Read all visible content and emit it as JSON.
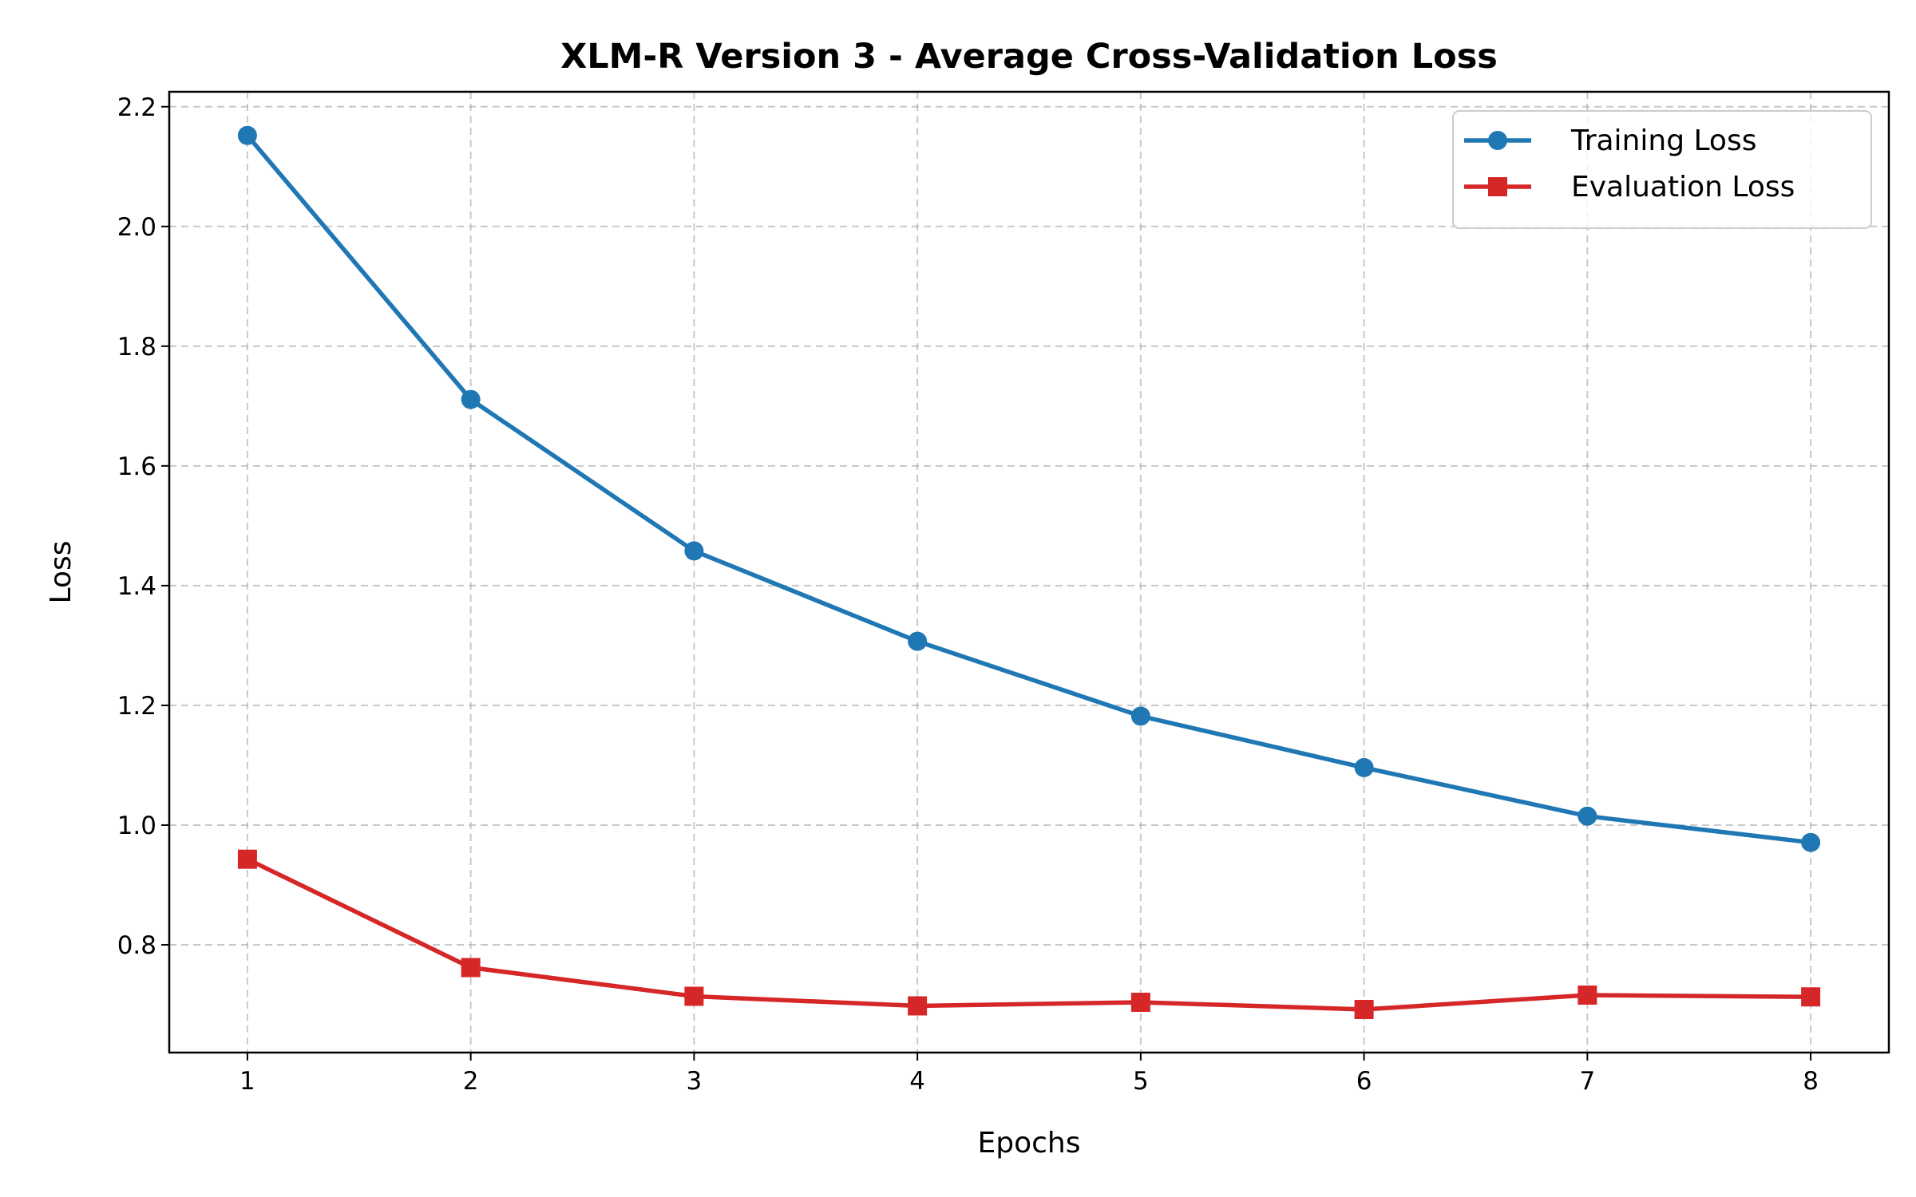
{
  "chart_data": {
    "type": "line",
    "title": "XLM-R Version 3 - Average Cross-Validation Loss",
    "xlabel": "Epochs",
    "ylabel": "Loss",
    "x": [
      1,
      2,
      3,
      4,
      5,
      6,
      7,
      8
    ],
    "xticks": [
      "1",
      "2",
      "3",
      "4",
      "5",
      "6",
      "7",
      "8"
    ],
    "yticks": [
      "0.8",
      "1.0",
      "1.2",
      "1.4",
      "1.6",
      "1.8",
      "2.0",
      "2.2"
    ],
    "xlim": [
      0.65,
      8.35
    ],
    "ylim": [
      0.62,
      2.225
    ],
    "grid": true,
    "legend_position": "top-right",
    "series": [
      {
        "name": "Training Loss",
        "color": "#1f77b4",
        "marker": "circle",
        "values": [
          2.152,
          1.711,
          1.458,
          1.307,
          1.182,
          1.096,
          1.015,
          0.971
        ]
      },
      {
        "name": "Evaluation Loss",
        "color": "#d62728",
        "marker": "square",
        "values": [
          0.943,
          0.762,
          0.714,
          0.698,
          0.704,
          0.692,
          0.716,
          0.713
        ]
      }
    ]
  }
}
